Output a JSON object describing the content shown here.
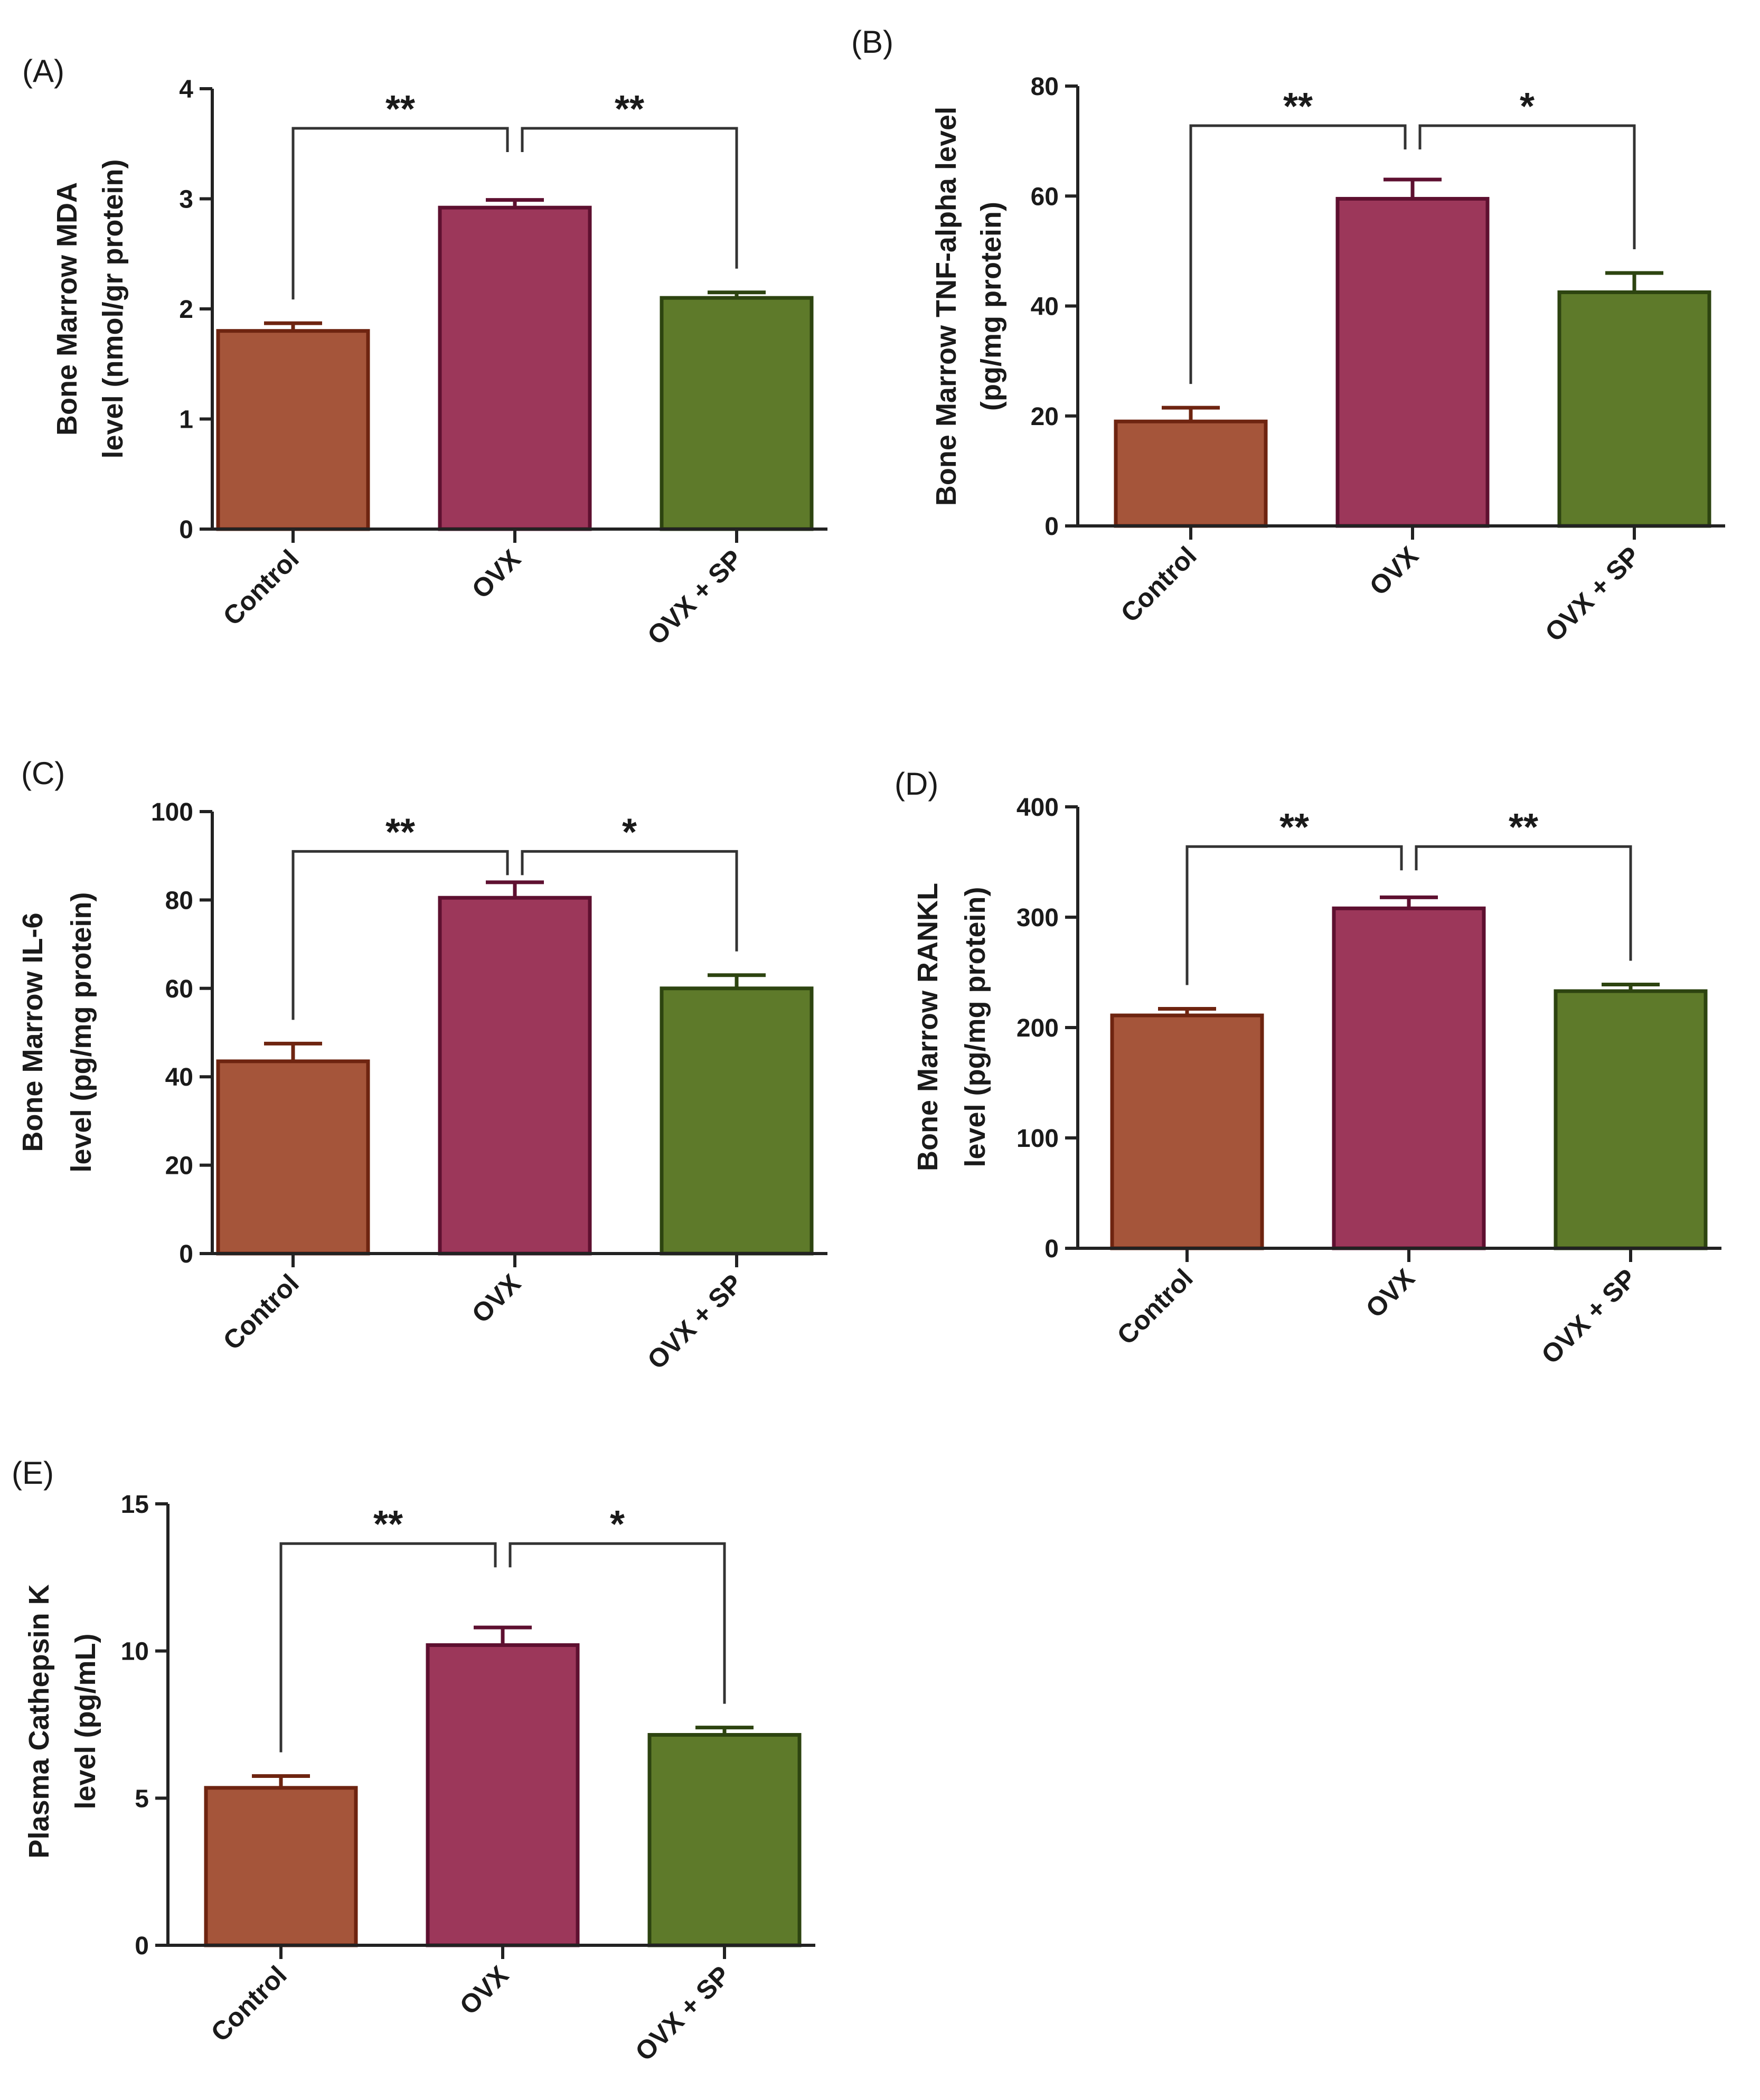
{
  "figure": {
    "colors": {
      "Control": {
        "fill": "#A5553A",
        "stroke": "#6E2410"
      },
      "OVX": {
        "fill": "#9C375A",
        "stroke": "#5E1030"
      },
      "OVX + SP": {
        "fill": "#5E7A2A",
        "stroke": "#2D4410"
      },
      "axis": "#222222"
    }
  },
  "chart_data": [
    {
      "panel": "(A)",
      "type": "bar",
      "categories": [
        "Control",
        "OVX",
        "OVX + SP"
      ],
      "values": [
        1.8,
        2.92,
        2.1
      ],
      "errors": [
        0.07,
        0.07,
        0.05
      ],
      "ylabel": [
        "Bone  Marrow MDA",
        "level (nmol/gr protein)"
      ],
      "ylim": [
        0,
        4
      ],
      "yticks": [
        0,
        1,
        2,
        3,
        4
      ],
      "comparisons": [
        {
          "from": "Control",
          "to": "OVX",
          "label": "**"
        },
        {
          "from": "OVX",
          "to": "OVX + SP",
          "label": "**"
        }
      ]
    },
    {
      "panel": "(B)",
      "type": "bar",
      "categories": [
        "Control",
        "OVX",
        "OVX + SP"
      ],
      "values": [
        19,
        59.5,
        42.5
      ],
      "errors": [
        2.5,
        3.5,
        3.5
      ],
      "ylabel": [
        "Bone  Marrow TNF-alpha level",
        "(pg/mg protein)"
      ],
      "ylim": [
        0,
        80
      ],
      "yticks": [
        0,
        20,
        40,
        60,
        80
      ],
      "comparisons": [
        {
          "from": "Control",
          "to": "OVX",
          "label": "**"
        },
        {
          "from": "OVX",
          "to": "OVX + SP",
          "label": "*"
        }
      ]
    },
    {
      "panel": "(C)",
      "type": "bar",
      "categories": [
        "Control",
        "OVX",
        "OVX + SP"
      ],
      "values": [
        43.5,
        80.5,
        60
      ],
      "errors": [
        4,
        3.5,
        3
      ],
      "ylabel": [
        "Bone Marrow IL-6",
        "level (pg/mg protein)"
      ],
      "ylim": [
        0,
        100
      ],
      "yticks": [
        0,
        20,
        40,
        60,
        80,
        100
      ],
      "comparisons": [
        {
          "from": "Control",
          "to": "OVX",
          "label": "**"
        },
        {
          "from": "OVX",
          "to": "OVX + SP",
          "label": "*"
        }
      ]
    },
    {
      "panel": "(D)",
      "type": "bar",
      "categories": [
        "Control",
        "OVX",
        "OVX + SP"
      ],
      "values": [
        211,
        308,
        233
      ],
      "errors": [
        6,
        10,
        6
      ],
      "ylabel": [
        "Bone Marrow RANKL",
        "level (pg/mg protein)"
      ],
      "ylim": [
        0,
        400
      ],
      "yticks": [
        0,
        100,
        200,
        300,
        400
      ],
      "comparisons": [
        {
          "from": "Control",
          "to": "OVX",
          "label": "**"
        },
        {
          "from": "OVX",
          "to": "OVX + SP",
          "label": "**"
        }
      ]
    },
    {
      "panel": "(E)",
      "type": "bar",
      "categories": [
        "Control",
        "OVX",
        "OVX + SP"
      ],
      "values": [
        5.35,
        10.2,
        7.15
      ],
      "errors": [
        0.4,
        0.6,
        0.25
      ],
      "ylabel": [
        "Plasma Cathepsin K",
        "level (pg/mL)"
      ],
      "ylim": [
        0,
        15
      ],
      "yticks": [
        0,
        5,
        10,
        15
      ],
      "comparisons": [
        {
          "from": "Control",
          "to": "OVX",
          "label": "**"
        },
        {
          "from": "OVX",
          "to": "OVX + SP",
          "label": "*"
        }
      ]
    }
  ]
}
